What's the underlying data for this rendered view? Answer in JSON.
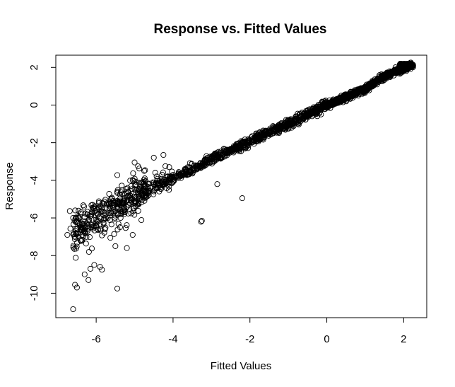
{
  "chart_data": {
    "type": "scatter",
    "title": "Response vs. Fitted Values",
    "xlabel": "Fitted Values",
    "ylabel": "Response",
    "xlim": [
      -7.05,
      2.6
    ],
    "ylim": [
      -11.3,
      2.65
    ],
    "xticks": [
      -6,
      -4,
      -2,
      0,
      2
    ],
    "yticks": [
      -10,
      -8,
      -6,
      -4,
      -2,
      0,
      2
    ],
    "xtick_labels": [
      "-6",
      "-4",
      "-2",
      "0",
      "2"
    ],
    "ytick_labels": [
      "-10",
      "-8",
      "-6",
      "-4",
      "-2",
      "0",
      "2"
    ],
    "grid": false,
    "marker": "open-circle",
    "color": "#000000",
    "trend": {
      "description_points_x": [
        -6.8,
        -6.0,
        -5.5,
        -5.0,
        -4.0,
        -3.0,
        -2.0,
        -1.0,
        0.0,
        1.0,
        1.5,
        2.2
      ],
      "description_points_y": [
        -7.0,
        -6.0,
        -5.4,
        -4.9,
        -3.9,
        -2.9,
        -1.95,
        -1.0,
        0.0,
        0.85,
        1.55,
        2.1
      ]
    },
    "outliers": {
      "x": [
        -6.6,
        -6.55,
        -6.5,
        -6.3,
        -6.2,
        -6.15,
        -6.05,
        -5.9,
        -5.85,
        -5.45,
        -3.25,
        -3.27,
        -2.85,
        -2.2,
        -3.0,
        -2.9,
        -4.5,
        -4.25,
        -4.1,
        -4.2,
        -5.0,
        -4.75,
        -6.75,
        -6.6,
        -5.05,
        -5.5,
        -5.2
      ],
      "y": [
        -10.85,
        -9.55,
        -9.7,
        -9.0,
        -9.3,
        -8.7,
        -8.5,
        -8.6,
        -8.75,
        -9.75,
        -6.15,
        -6.2,
        -4.2,
        -4.95,
        -2.75,
        -2.6,
        -2.8,
        -2.65,
        -3.3,
        -3.25,
        -3.05,
        -3.5,
        -6.9,
        -6.0,
        -6.9,
        -7.5,
        -7.6
      ]
    }
  }
}
